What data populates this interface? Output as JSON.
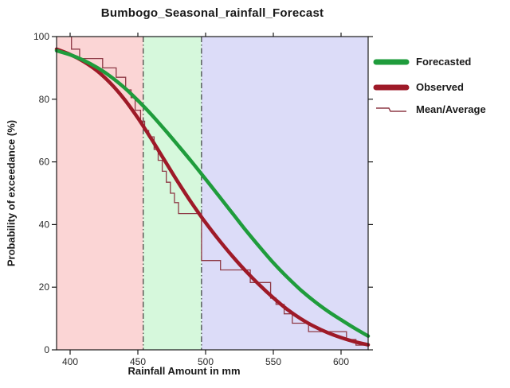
{
  "title": "Bumbogo_Seasonal_rainfall_Forecast",
  "axes": {
    "x_label": "Rainfall Amount in mm",
    "y_label": "Probability of exceedance (%)",
    "x_ticks": [
      400,
      450,
      500,
      550,
      600
    ],
    "y_ticks": [
      0,
      20,
      40,
      60,
      80,
      100
    ],
    "x_range": [
      390,
      620
    ],
    "y_range": [
      0,
      100
    ]
  },
  "legend": {
    "items": [
      {
        "label": "Forecasted",
        "color": "#1f9c3c",
        "swatch": "thick-line"
      },
      {
        "label": "Observed",
        "color": "#9e1a28",
        "swatch": "thick-line"
      },
      {
        "label": "Mean/Average",
        "color": "#8e3a46",
        "swatch": "thin-step-line"
      }
    ]
  },
  "chart_data": {
    "type": "line",
    "title": "Bumbogo_Seasonal_rainfall_Forecast",
    "xlabel": "Rainfall Amount in mm",
    "ylabel": "Probability of exceedance (%)",
    "xlim": [
      390,
      620
    ],
    "ylim": [
      0,
      100
    ],
    "grid": false,
    "legend_position": "right",
    "frame_color": "#1a1a1a",
    "background_regions": [
      {
        "x_from": 390,
        "x_to": 454,
        "color": "#fbd5d5"
      },
      {
        "x_from": 454,
        "x_to": 497,
        "color": "#d6f8dc"
      },
      {
        "x_from": 497,
        "x_to": 620,
        "color": "#dcdcf8"
      }
    ],
    "vertical_dashed_lines": [
      454,
      497
    ],
    "series": [
      {
        "name": "Forecasted",
        "style": "smooth",
        "color": "#1f9c3c",
        "width": 4.5,
        "points": [
          [
            390,
            95.5
          ],
          [
            400,
            94.2
          ],
          [
            410,
            92.4
          ],
          [
            420,
            90.1
          ],
          [
            430,
            87.2
          ],
          [
            440,
            83.7
          ],
          [
            450,
            79.6
          ],
          [
            460,
            75.1
          ],
          [
            470,
            70.2
          ],
          [
            480,
            65.1
          ],
          [
            490,
            59.9
          ],
          [
            500,
            54.5
          ],
          [
            510,
            49.0
          ],
          [
            520,
            43.5
          ],
          [
            530,
            38.0
          ],
          [
            540,
            32.8
          ],
          [
            550,
            27.8
          ],
          [
            560,
            23.3
          ],
          [
            570,
            19.2
          ],
          [
            580,
            15.6
          ],
          [
            590,
            12.4
          ],
          [
            600,
            9.6
          ],
          [
            610,
            6.9
          ],
          [
            620,
            4.4
          ]
        ]
      },
      {
        "name": "Observed",
        "style": "smooth",
        "color": "#9e1a28",
        "width": 4.5,
        "points": [
          [
            390,
            96.0
          ],
          [
            400,
            94.3
          ],
          [
            410,
            92.0
          ],
          [
            420,
            89.0
          ],
          [
            430,
            85.0
          ],
          [
            440,
            80.0
          ],
          [
            450,
            74.0
          ],
          [
            460,
            67.3
          ],
          [
            470,
            60.3
          ],
          [
            480,
            53.3
          ],
          [
            490,
            46.7
          ],
          [
            500,
            40.6
          ],
          [
            510,
            35.0
          ],
          [
            520,
            29.8
          ],
          [
            530,
            25.0
          ],
          [
            540,
            20.6
          ],
          [
            550,
            16.6
          ],
          [
            560,
            13.0
          ],
          [
            570,
            10.0
          ],
          [
            580,
            7.5
          ],
          [
            590,
            5.5
          ],
          [
            600,
            3.9
          ],
          [
            610,
            2.6
          ],
          [
            620,
            1.6
          ]
        ]
      },
      {
        "name": "Mean/Average",
        "style": "step",
        "color": "#8e3a46",
        "width": 1.3,
        "points": [
          [
            401,
            100
          ],
          [
            401,
            96
          ],
          [
            407,
            96
          ],
          [
            407,
            93
          ],
          [
            424,
            93
          ],
          [
            424,
            90
          ],
          [
            434,
            90
          ],
          [
            434,
            87
          ],
          [
            441,
            87
          ],
          [
            441,
            83
          ],
          [
            445,
            83
          ],
          [
            445,
            80.5
          ],
          [
            448,
            80.5
          ],
          [
            448,
            76.5
          ],
          [
            452,
            76.5
          ],
          [
            452,
            73
          ],
          [
            455,
            73
          ],
          [
            455,
            70
          ],
          [
            458,
            70
          ],
          [
            458,
            68
          ],
          [
            462,
            68
          ],
          [
            462,
            64
          ],
          [
            465,
            64
          ],
          [
            465,
            60.5
          ],
          [
            468,
            60.5
          ],
          [
            468,
            57
          ],
          [
            471,
            57
          ],
          [
            471,
            53.5
          ],
          [
            474,
            53.5
          ],
          [
            474,
            50
          ],
          [
            477,
            50
          ],
          [
            477,
            47
          ],
          [
            480,
            47
          ],
          [
            480,
            43.5
          ],
          [
            497,
            43.5
          ],
          [
            497,
            28.5
          ],
          [
            511,
            28.5
          ],
          [
            511,
            25.5
          ],
          [
            533,
            25.5
          ],
          [
            533,
            21.5
          ],
          [
            548,
            21.5
          ],
          [
            548,
            16.5
          ],
          [
            552,
            16.5
          ],
          [
            552,
            14.5
          ],
          [
            558,
            14.5
          ],
          [
            558,
            11.5
          ],
          [
            564,
            11.5
          ],
          [
            564,
            8.5
          ],
          [
            576,
            8.5
          ],
          [
            576,
            5.8
          ],
          [
            604,
            5.8
          ],
          [
            604,
            3.3
          ],
          [
            611,
            3.3
          ],
          [
            611,
            1.5
          ],
          [
            620,
            1.5
          ]
        ]
      }
    ]
  }
}
